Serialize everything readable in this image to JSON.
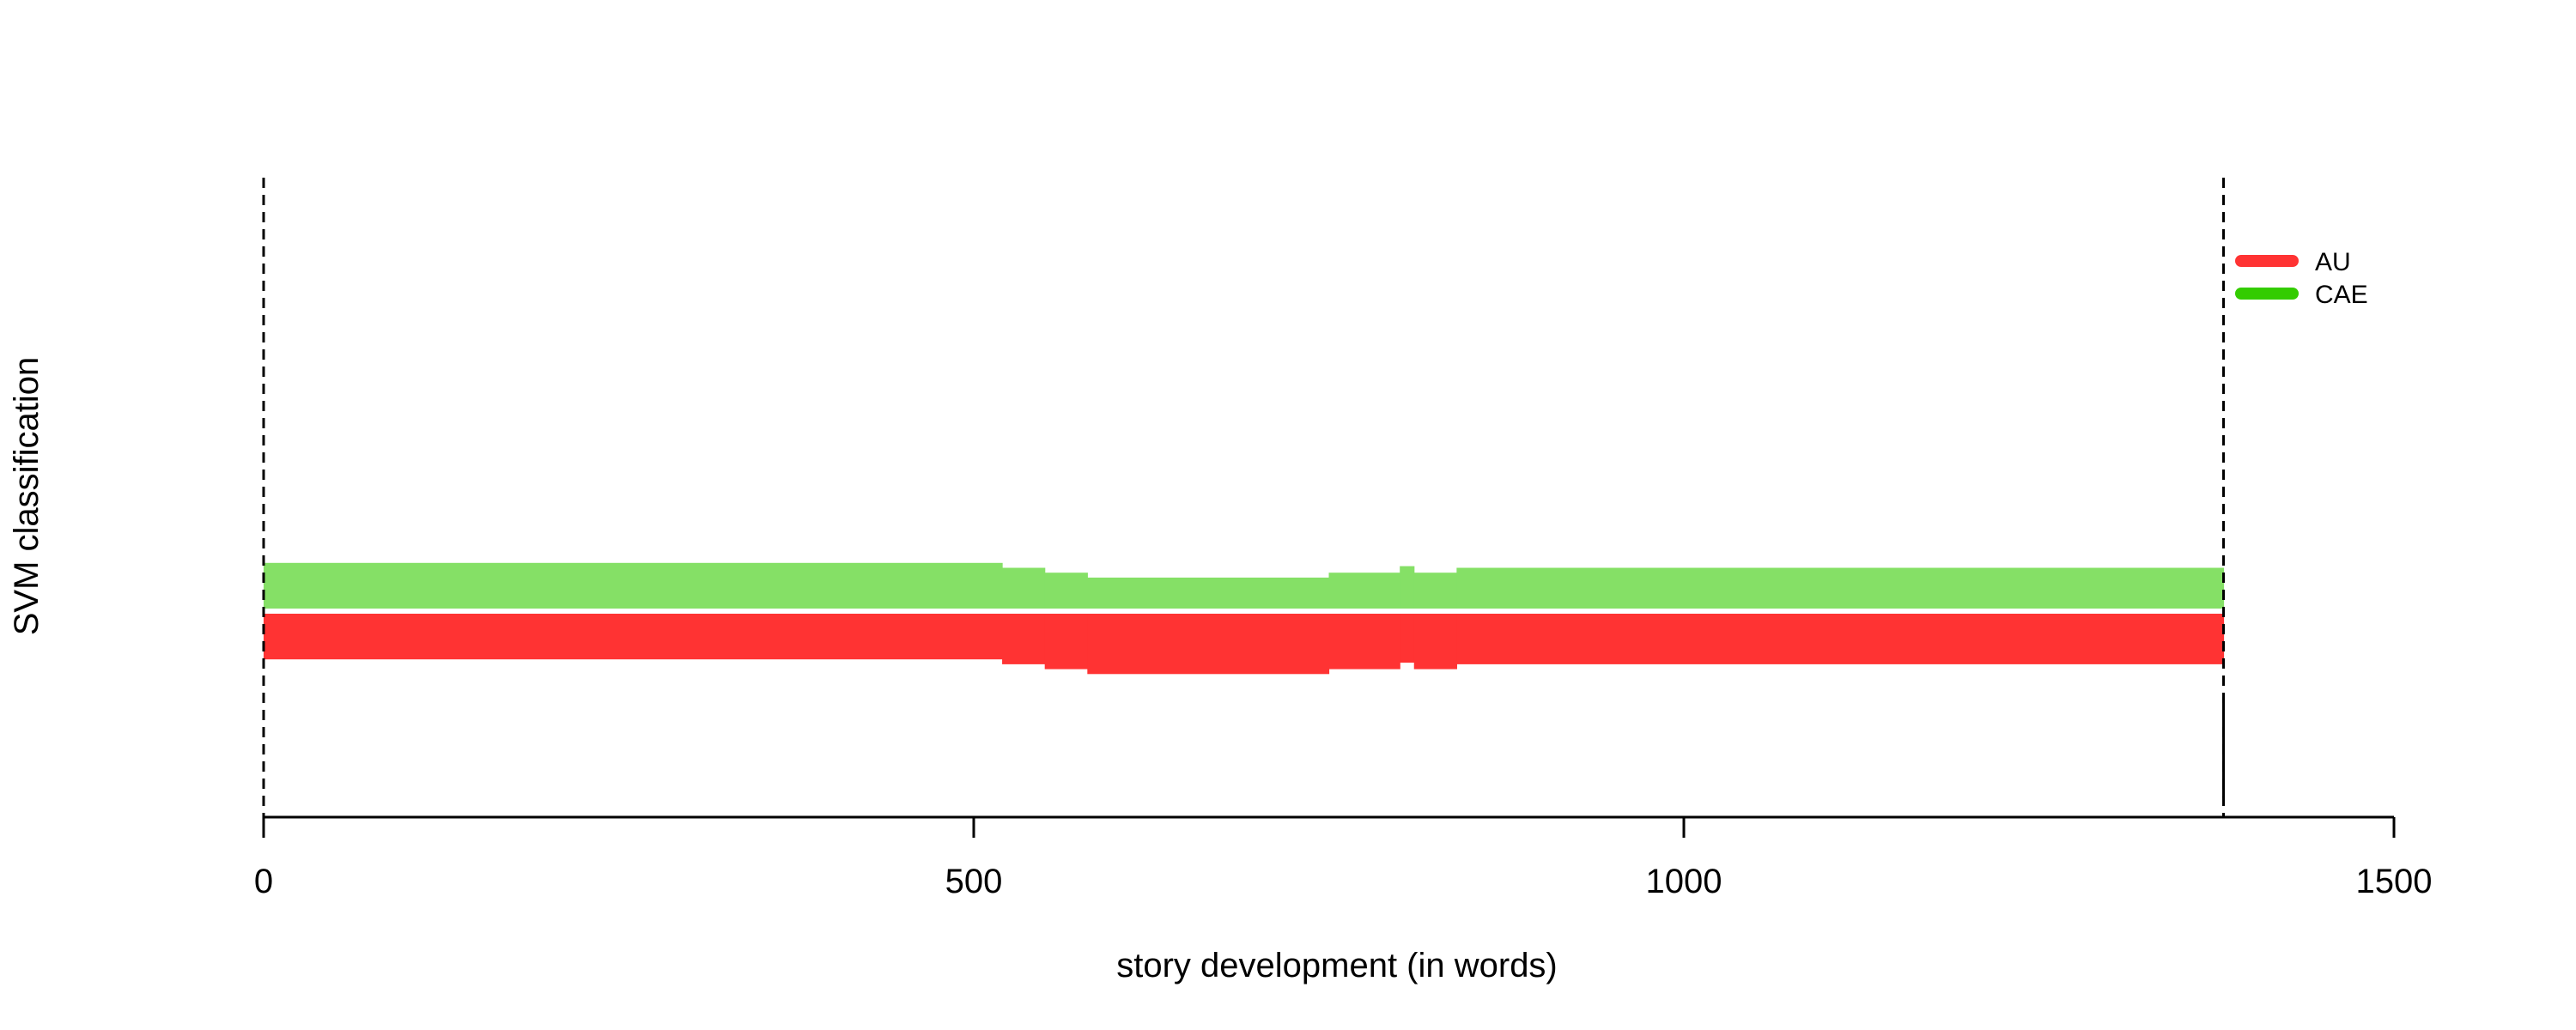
{
  "chart_data": {
    "type": "area",
    "title": "",
    "xlabel": "story development (in words)",
    "ylabel": "SVM classification",
    "xlim": [
      0,
      1500
    ],
    "xticks": [
      0,
      500,
      1000,
      1500
    ],
    "ylim": [
      -1,
      1
    ],
    "grid": false,
    "legend": {
      "placement": "top-right",
      "entries": [
        {
          "name": "AU",
          "color": "#FF3333"
        },
        {
          "name": "CAE",
          "color": "#33CC00"
        }
      ]
    },
    "boundaries": [
      0,
      1380
    ],
    "marker_x": 1380,
    "series": [
      {
        "name": "CAE",
        "color": "#85E066",
        "segments": [
          {
            "x0": 0,
            "x1": 520,
            "value": 0.14
          },
          {
            "x0": 520,
            "x1": 550,
            "value": 0.125
          },
          {
            "x0": 550,
            "x1": 580,
            "value": 0.11
          },
          {
            "x0": 580,
            "x1": 750,
            "value": 0.095
          },
          {
            "x0": 750,
            "x1": 800,
            "value": 0.11
          },
          {
            "x0": 800,
            "x1": 810,
            "value": 0.13
          },
          {
            "x0": 810,
            "x1": 840,
            "value": 0.11
          },
          {
            "x0": 840,
            "x1": 1380,
            "value": 0.125
          }
        ]
      },
      {
        "name": "AU",
        "color": "#FF3333",
        "segments": [
          {
            "x0": 0,
            "x1": 520,
            "value": 0.14
          },
          {
            "x0": 520,
            "x1": 550,
            "value": 0.155
          },
          {
            "x0": 550,
            "x1": 580,
            "value": 0.17
          },
          {
            "x0": 580,
            "x1": 750,
            "value": 0.185
          },
          {
            "x0": 750,
            "x1": 800,
            "value": 0.17
          },
          {
            "x0": 800,
            "x1": 810,
            "value": 0.15
          },
          {
            "x0": 810,
            "x1": 840,
            "value": 0.17
          },
          {
            "x0": 840,
            "x1": 1380,
            "value": 0.155
          }
        ]
      }
    ]
  }
}
